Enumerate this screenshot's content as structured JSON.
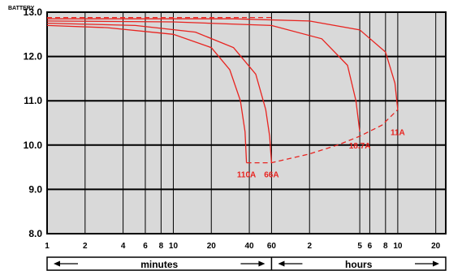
{
  "chart_data": {
    "type": "line",
    "title": "BATTERY",
    "x_scale": "log",
    "x_tick_labels": [
      "1",
      "2",
      "4",
      "6",
      "8",
      "10",
      "20",
      "40",
      "60",
      "2",
      "5",
      "6",
      "8",
      "10",
      "20"
    ],
    "x_ticks_minutes": [
      1,
      2,
      4,
      6,
      8,
      10,
      20,
      40,
      60,
      120,
      300,
      360,
      480,
      600,
      1200
    ],
    "y_tick_labels": [
      "13.0",
      "12.0",
      "11.0",
      "10.0",
      "9.0",
      "8.0"
    ],
    "ylim": [
      8.0,
      13.0
    ],
    "x_segments": [
      {
        "label": "minutes",
        "from_minutes": 1,
        "to_minutes": 60
      },
      {
        "label": "hours",
        "from_minutes": 60,
        "to_minutes": 1440
      }
    ],
    "grid": true,
    "colors": {
      "curves": "#e8231f",
      "plot_bg": "#d9d9d9",
      "grid": "#000000"
    },
    "series": [
      {
        "name": "110A",
        "x": [
          1,
          3,
          10,
          20,
          28,
          34,
          37,
          38
        ],
        "y": [
          12.7,
          12.65,
          12.5,
          12.2,
          11.7,
          11.0,
          10.3,
          9.6
        ]
      },
      {
        "name": "66A",
        "x": [
          1,
          5,
          15,
          30,
          45,
          54,
          58,
          60
        ],
        "y": [
          12.75,
          12.7,
          12.55,
          12.2,
          11.6,
          10.8,
          10.2,
          9.6
        ]
      },
      {
        "name": "18.7A",
        "x": [
          1,
          10,
          60,
          150,
          240,
          280,
          300
        ],
        "y": [
          12.8,
          12.78,
          12.7,
          12.4,
          11.8,
          11.0,
          10.3
        ]
      },
      {
        "name": "11A",
        "x": [
          1,
          30,
          120,
          300,
          480,
          570,
          600
        ],
        "y": [
          12.85,
          12.85,
          12.8,
          12.6,
          12.1,
          11.4,
          10.8
        ]
      }
    ],
    "envelope_dashed": {
      "x": [
        38,
        60,
        120,
        200,
        300,
        450,
        600
      ],
      "y": [
        9.6,
        9.6,
        9.8,
        10.0,
        10.2,
        10.45,
        10.8
      ]
    },
    "top_dashed": {
      "x": [
        1,
        60
      ],
      "y": [
        12.88,
        12.88
      ]
    },
    "annotations": [
      {
        "text": "110A",
        "x": 38,
        "y": 9.35
      },
      {
        "text": "66A",
        "x": 60,
        "y": 9.35
      },
      {
        "text": "18.7A",
        "x": 300,
        "y": 10.0
      },
      {
        "text": "11A",
        "x": 600,
        "y": 10.3
      }
    ]
  }
}
